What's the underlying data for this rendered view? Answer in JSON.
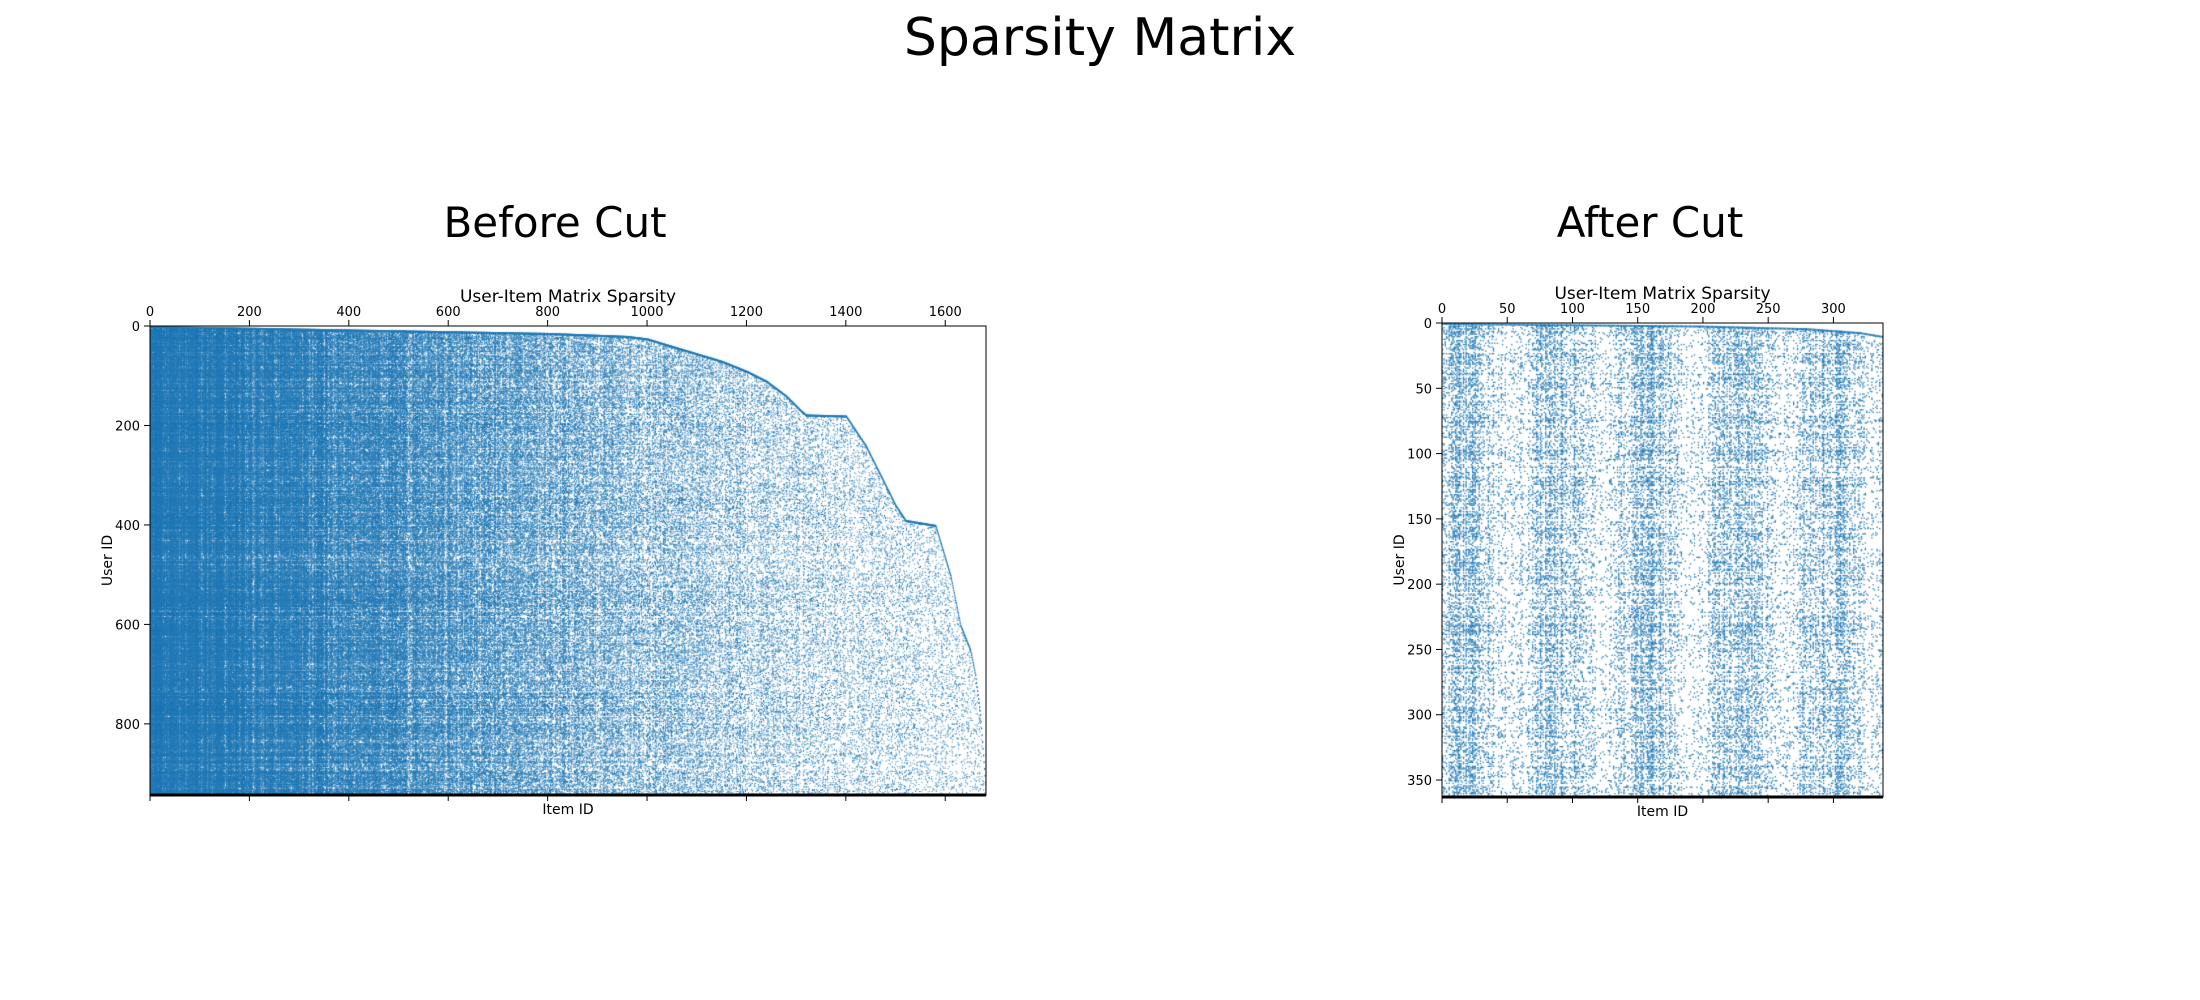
{
  "title": "Sparsity Matrix",
  "panels": [
    {
      "heading": "Before Cut"
    },
    {
      "heading": "After Cut"
    }
  ],
  "colors": {
    "marker": "#1f77b4",
    "axis": "#000000"
  },
  "chart_data": [
    {
      "type": "scatter",
      "subtype": "spy-plot",
      "heading": "Before Cut",
      "title": "User-Item Matrix Sparsity",
      "xlabel": "Item ID",
      "ylabel": "User ID",
      "xlim": [
        0,
        1682
      ],
      "ylim": [
        943,
        0
      ],
      "x_ticks": [
        0,
        200,
        400,
        600,
        800,
        1000,
        1200,
        1400,
        1600
      ],
      "y_ticks": [
        0,
        200,
        400,
        600,
        800
      ],
      "x_axis_position": "top",
      "y_axis_inverted": true,
      "grid": false,
      "n_users": 943,
      "n_items": 1682,
      "frontier": [
        [
          0,
          0
        ],
        [
          800,
          14
        ],
        [
          960,
          20
        ],
        [
          1000,
          25
        ],
        [
          1050,
          40
        ],
        [
          1100,
          55
        ],
        [
          1150,
          70
        ],
        [
          1200,
          90
        ],
        [
          1240,
          110
        ],
        [
          1280,
          140
        ],
        [
          1310,
          170
        ],
        [
          1320,
          178
        ],
        [
          1400,
          180
        ],
        [
          1420,
          210
        ],
        [
          1440,
          240
        ],
        [
          1470,
          300
        ],
        [
          1500,
          360
        ],
        [
          1520,
          390
        ],
        [
          1580,
          400
        ],
        [
          1610,
          500
        ],
        [
          1630,
          600
        ],
        [
          1650,
          650
        ],
        [
          1660,
          700
        ],
        [
          1670,
          780
        ],
        [
          1682,
          943
        ]
      ]
    },
    {
      "type": "scatter",
      "subtype": "spy-plot",
      "heading": "After Cut",
      "title": "User-Item Matrix Sparsity",
      "xlabel": "Item ID",
      "ylabel": "User ID",
      "xlim": [
        0,
        338
      ],
      "ylim": [
        363,
        0
      ],
      "x_ticks": [
        0,
        50,
        100,
        150,
        200,
        250,
        300
      ],
      "y_ticks": [
        0,
        50,
        100,
        150,
        200,
        250,
        300,
        350
      ],
      "x_axis_position": "top",
      "y_axis_inverted": true,
      "grid": false,
      "n_users": 363,
      "n_items": 338,
      "frontier": [
        [
          0,
          0
        ],
        [
          200,
          2
        ],
        [
          280,
          4
        ],
        [
          320,
          7
        ],
        [
          338,
          10
        ]
      ]
    }
  ]
}
